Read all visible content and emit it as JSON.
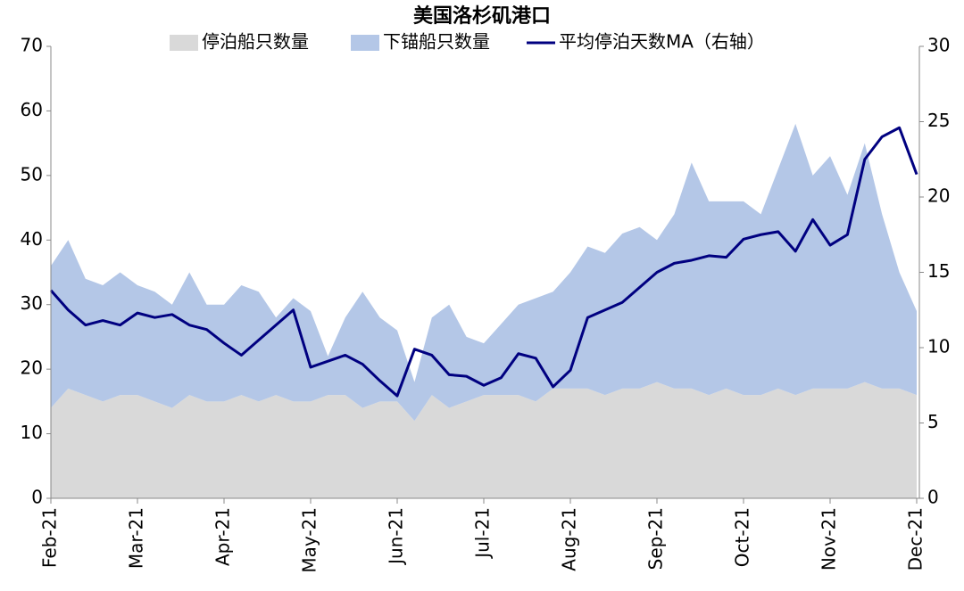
{
  "chart_data": {
    "type": "area-line",
    "title": "美国洛杉矶港口",
    "categories": [
      "Feb-21",
      null,
      null,
      null,
      null,
      "Mar-21",
      null,
      null,
      null,
      null,
      "Apr-21",
      null,
      null,
      null,
      null,
      "May-21",
      null,
      null,
      null,
      null,
      "Jun-21",
      null,
      null,
      null,
      null,
      "Jul-21",
      null,
      null,
      null,
      null,
      "Aug-21",
      null,
      null,
      null,
      null,
      "Sep-21",
      null,
      null,
      null,
      null,
      "Oct-21",
      null,
      null,
      null,
      null,
      "Nov-21",
      null,
      null,
      null,
      null,
      "Dec-21"
    ],
    "series": [
      {
        "name": "停泊船只数量",
        "color": "#d9d9d9",
        "stacked": true,
        "values": [
          14,
          17,
          16,
          15,
          16,
          16,
          15,
          14,
          16,
          15,
          15,
          16,
          15,
          16,
          15,
          15,
          16,
          16,
          14,
          15,
          15,
          12,
          16,
          14,
          15,
          16,
          16,
          16,
          15,
          17,
          17,
          17,
          16,
          17,
          17,
          18,
          17,
          17,
          16,
          17,
          16,
          16,
          17,
          16,
          17,
          17,
          17,
          18,
          17,
          17,
          16
        ]
      },
      {
        "name": "下锚船只数量",
        "color": "#b4c7e7",
        "stacked": true,
        "values": [
          22,
          23,
          18,
          18,
          19,
          17,
          17,
          16,
          19,
          15,
          15,
          17,
          17,
          12,
          16,
          14,
          6,
          12,
          18,
          13,
          11,
          6,
          12,
          16,
          10,
          8,
          11,
          14,
          16,
          15,
          18,
          22,
          22,
          24,
          25,
          22,
          27,
          35,
          30,
          29,
          30,
          28,
          34,
          42,
          33,
          36,
          30,
          37,
          27,
          18,
          13
        ]
      },
      {
        "name": "平均停泊天数MA（右轴）",
        "color": "#000080",
        "axis": "y2",
        "values": [
          13.8,
          12.5,
          11.5,
          11.8,
          11.5,
          12.3,
          12.0,
          12.2,
          11.5,
          11.2,
          10.3,
          9.5,
          10.5,
          11.5,
          12.5,
          8.7,
          9.1,
          9.5,
          8.9,
          7.8,
          6.8,
          9.9,
          9.5,
          8.2,
          8.1,
          7.5,
          8.0,
          9.6,
          9.3,
          7.4,
          8.5,
          12.0,
          12.5,
          13.0,
          14.0,
          15.0,
          15.6,
          15.8,
          16.1,
          16.0,
          17.2,
          17.5,
          17.7,
          16.4,
          18.5,
          16.8,
          17.5,
          22.5,
          24.0,
          24.6,
          21.5
        ]
      }
    ],
    "ylim": [
      0,
      70
    ],
    "yticks": [
      0,
      10,
      20,
      30,
      40,
      50,
      60,
      70
    ],
    "y2lim": [
      0,
      30
    ],
    "y2ticks": [
      0,
      5,
      10,
      15,
      20,
      25,
      30
    ],
    "legend": "top"
  }
}
